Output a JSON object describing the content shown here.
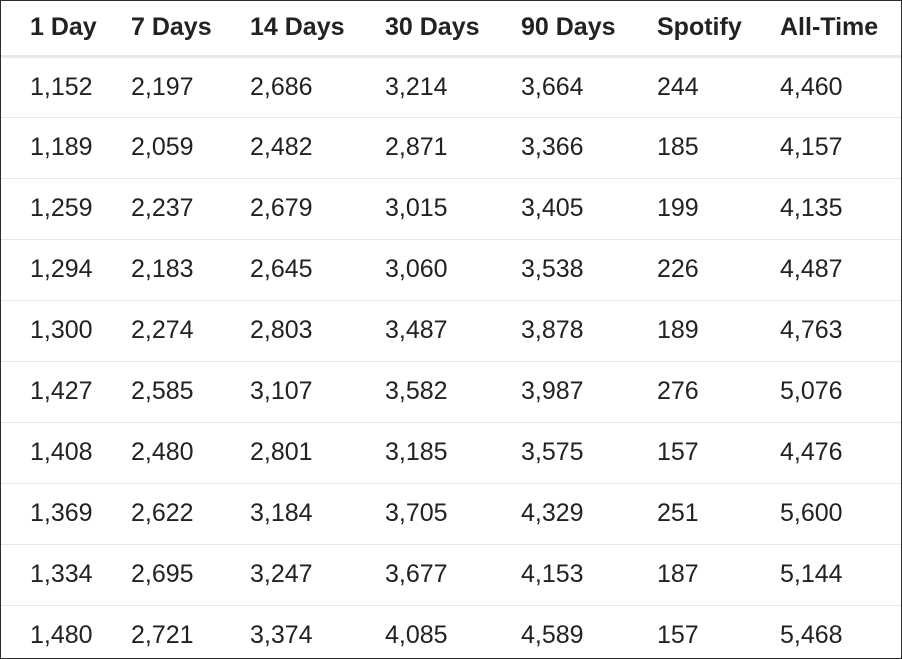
{
  "table": {
    "headers": [
      "1 Day",
      "7 Days",
      "14 Days",
      "30 Days",
      "90 Days",
      "Spotify",
      "All-Time"
    ],
    "rows": [
      [
        "1,152",
        "2,197",
        "2,686",
        "3,214",
        "3,664",
        "244",
        "4,460"
      ],
      [
        "1,189",
        "2,059",
        "2,482",
        "2,871",
        "3,366",
        "185",
        "4,157"
      ],
      [
        "1,259",
        "2,237",
        "2,679",
        "3,015",
        "3,405",
        "199",
        "4,135"
      ],
      [
        "1,294",
        "2,183",
        "2,645",
        "3,060",
        "3,538",
        "226",
        "4,487"
      ],
      [
        "1,300",
        "2,274",
        "2,803",
        "3,487",
        "3,878",
        "189",
        "4,763"
      ],
      [
        "1,427",
        "2,585",
        "3,107",
        "3,582",
        "3,987",
        "276",
        "5,076"
      ],
      [
        "1,408",
        "2,480",
        "2,801",
        "3,185",
        "3,575",
        "157",
        "4,476"
      ],
      [
        "1,369",
        "2,622",
        "3,184",
        "3,705",
        "4,329",
        "251",
        "5,600"
      ],
      [
        "1,334",
        "2,695",
        "3,247",
        "3,677",
        "4,153",
        "187",
        "5,144"
      ],
      [
        "1,480",
        "2,721",
        "3,374",
        "4,085",
        "4,589",
        "157",
        "5,468"
      ]
    ]
  }
}
